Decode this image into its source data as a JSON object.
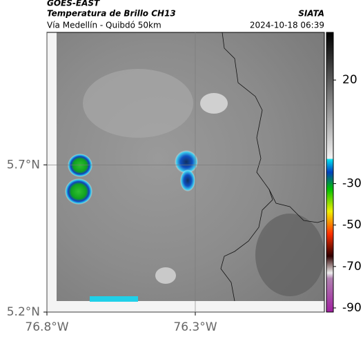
{
  "header": {
    "title": "GOES-EAST",
    "subtitle": "Temperatura de Brillo CH13",
    "source": "SIATA",
    "region": "Vía Medellín - Quibdó 50km",
    "timestamp": "2024-10-18 06:39"
  },
  "map": {
    "xlim": [
      -76.8,
      -75.865
    ],
    "ylim": [
      5.2,
      6.15
    ],
    "xticks": [
      {
        "value": -76.8,
        "label": "76.8°W"
      },
      {
        "value": -76.3,
        "label": "76.3°W"
      }
    ],
    "yticks": [
      {
        "value": 5.7,
        "label": "5.7°N"
      },
      {
        "value": 5.2,
        "label": "5.2°N"
      }
    ],
    "grid": true
  },
  "colorbar": {
    "clim": [
      -92,
      43
    ],
    "ticks": [
      20,
      -30,
      -50,
      -70,
      -90
    ]
  }
}
